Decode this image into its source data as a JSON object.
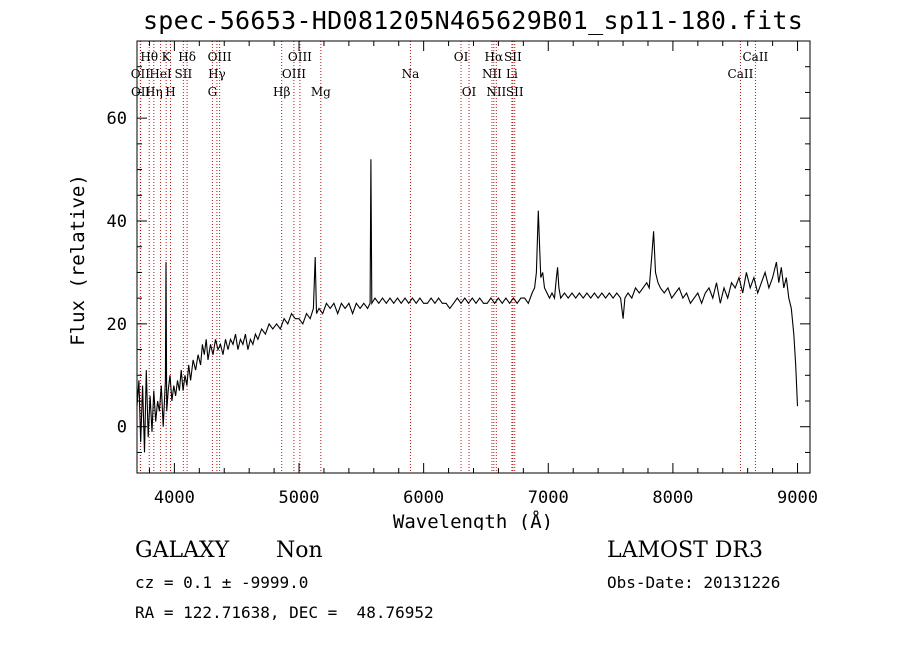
{
  "chart_data": {
    "type": "line",
    "title": "spec-56653-HD081205N465629B01_sp11-180.fits",
    "xlabel": "Wavelength (Å)",
    "ylabel": "Flux (relative)",
    "xlim": [
      3700,
      9100
    ],
    "ylim": [
      -9,
      75
    ],
    "xticks": [
      4000,
      5000,
      6000,
      7000,
      8000,
      9000
    ],
    "yticks": [
      0,
      20,
      40,
      60
    ],
    "line_color": "#000000",
    "marker_color": "#b01818",
    "series": [
      {
        "name": "spectrum",
        "points": [
          [
            3700,
            4
          ],
          [
            3715,
            9
          ],
          [
            3730,
            -3
          ],
          [
            3745,
            8
          ],
          [
            3760,
            -5
          ],
          [
            3775,
            11
          ],
          [
            3790,
            -2
          ],
          [
            3805,
            6
          ],
          [
            3820,
            -1
          ],
          [
            3835,
            7
          ],
          [
            3850,
            1
          ],
          [
            3865,
            5
          ],
          [
            3880,
            3
          ],
          [
            3895,
            8
          ],
          [
            3910,
            0
          ],
          [
            3922,
            6
          ],
          [
            3928,
            9
          ],
          [
            3933,
            32
          ],
          [
            3938,
            3
          ],
          [
            3950,
            7
          ],
          [
            3965,
            10
          ],
          [
            3980,
            5
          ],
          [
            3995,
            8
          ],
          [
            4010,
            6
          ],
          [
            4025,
            9
          ],
          [
            4040,
            7
          ],
          [
            4055,
            11
          ],
          [
            4070,
            7
          ],
          [
            4085,
            10
          ],
          [
            4100,
            8
          ],
          [
            4115,
            12
          ],
          [
            4130,
            9
          ],
          [
            4150,
            13
          ],
          [
            4170,
            11
          ],
          [
            4190,
            14
          ],
          [
            4210,
            12
          ],
          [
            4225,
            16
          ],
          [
            4240,
            14
          ],
          [
            4255,
            17
          ],
          [
            4270,
            13
          ],
          [
            4290,
            16
          ],
          [
            4310,
            14
          ],
          [
            4330,
            17
          ],
          [
            4350,
            15
          ],
          [
            4370,
            16
          ],
          [
            4390,
            14
          ],
          [
            4410,
            17
          ],
          [
            4430,
            15
          ],
          [
            4450,
            17
          ],
          [
            4470,
            16
          ],
          [
            4490,
            18
          ],
          [
            4510,
            15
          ],
          [
            4530,
            17
          ],
          [
            4550,
            16
          ],
          [
            4570,
            18
          ],
          [
            4590,
            15
          ],
          [
            4610,
            17
          ],
          [
            4630,
            16
          ],
          [
            4650,
            18
          ],
          [
            4670,
            17
          ],
          [
            4700,
            19
          ],
          [
            4730,
            18
          ],
          [
            4760,
            20
          ],
          [
            4790,
            19
          ],
          [
            4820,
            20
          ],
          [
            4850,
            19
          ],
          [
            4880,
            21
          ],
          [
            4910,
            20
          ],
          [
            4940,
            22
          ],
          [
            4970,
            21
          ],
          [
            5000,
            21
          ],
          [
            5030,
            20
          ],
          [
            5060,
            22
          ],
          [
            5090,
            21
          ],
          [
            5115,
            23
          ],
          [
            5130,
            33
          ],
          [
            5140,
            22
          ],
          [
            5160,
            23
          ],
          [
            5190,
            22
          ],
          [
            5220,
            24
          ],
          [
            5250,
            23
          ],
          [
            5280,
            24
          ],
          [
            5310,
            22
          ],
          [
            5340,
            24
          ],
          [
            5370,
            23
          ],
          [
            5400,
            24
          ],
          [
            5430,
            22
          ],
          [
            5460,
            24
          ],
          [
            5490,
            23
          ],
          [
            5520,
            24
          ],
          [
            5550,
            23
          ],
          [
            5570,
            24
          ],
          [
            5577,
            52
          ],
          [
            5584,
            24
          ],
          [
            5610,
            25
          ],
          [
            5640,
            24
          ],
          [
            5670,
            25
          ],
          [
            5700,
            24
          ],
          [
            5730,
            25
          ],
          [
            5760,
            24
          ],
          [
            5790,
            25
          ],
          [
            5820,
            24
          ],
          [
            5850,
            25
          ],
          [
            5880,
            24
          ],
          [
            5910,
            25
          ],
          [
            5940,
            24
          ],
          [
            5970,
            25
          ],
          [
            6000,
            24
          ],
          [
            6030,
            24
          ],
          [
            6060,
            25
          ],
          [
            6090,
            24
          ],
          [
            6120,
            25
          ],
          [
            6150,
            24
          ],
          [
            6180,
            24
          ],
          [
            6210,
            23
          ],
          [
            6240,
            24
          ],
          [
            6270,
            25
          ],
          [
            6300,
            24
          ],
          [
            6330,
            25
          ],
          [
            6360,
            24
          ],
          [
            6390,
            25
          ],
          [
            6420,
            24
          ],
          [
            6450,
            25
          ],
          [
            6480,
            24
          ],
          [
            6510,
            24
          ],
          [
            6540,
            25
          ],
          [
            6570,
            24
          ],
          [
            6600,
            25
          ],
          [
            6630,
            24
          ],
          [
            6660,
            25
          ],
          [
            6690,
            24
          ],
          [
            6720,
            25
          ],
          [
            6750,
            24
          ],
          [
            6780,
            25
          ],
          [
            6810,
            25
          ],
          [
            6840,
            24
          ],
          [
            6870,
            26
          ],
          [
            6890,
            27
          ],
          [
            6905,
            30
          ],
          [
            6920,
            42
          ],
          [
            6930,
            35
          ],
          [
            6940,
            29
          ],
          [
            6955,
            30
          ],
          [
            6970,
            27
          ],
          [
            6990,
            26
          ],
          [
            7010,
            25
          ],
          [
            7030,
            26
          ],
          [
            7050,
            25
          ],
          [
            7065,
            29
          ],
          [
            7075,
            31
          ],
          [
            7085,
            27
          ],
          [
            7100,
            25
          ],
          [
            7130,
            26
          ],
          [
            7160,
            25
          ],
          [
            7190,
            26
          ],
          [
            7220,
            25
          ],
          [
            7250,
            26
          ],
          [
            7280,
            25
          ],
          [
            7310,
            26
          ],
          [
            7340,
            25
          ],
          [
            7370,
            26
          ],
          [
            7400,
            25
          ],
          [
            7430,
            26
          ],
          [
            7460,
            25
          ],
          [
            7490,
            26
          ],
          [
            7520,
            25
          ],
          [
            7550,
            26
          ],
          [
            7580,
            25
          ],
          [
            7600,
            21
          ],
          [
            7615,
            25
          ],
          [
            7640,
            26
          ],
          [
            7670,
            25
          ],
          [
            7700,
            27
          ],
          [
            7730,
            26
          ],
          [
            7760,
            27
          ],
          [
            7790,
            28
          ],
          [
            7810,
            27
          ],
          [
            7830,
            33
          ],
          [
            7845,
            38
          ],
          [
            7860,
            30
          ],
          [
            7880,
            28
          ],
          [
            7900,
            27
          ],
          [
            7930,
            26
          ],
          [
            7960,
            27
          ],
          [
            7990,
            25
          ],
          [
            8020,
            26
          ],
          [
            8050,
            27
          ],
          [
            8080,
            25
          ],
          [
            8110,
            26
          ],
          [
            8140,
            24
          ],
          [
            8170,
            25
          ],
          [
            8200,
            26
          ],
          [
            8230,
            24
          ],
          [
            8260,
            26
          ],
          [
            8290,
            27
          ],
          [
            8320,
            25
          ],
          [
            8350,
            28
          ],
          [
            8380,
            24
          ],
          [
            8410,
            27
          ],
          [
            8440,
            25
          ],
          [
            8470,
            28
          ],
          [
            8500,
            27
          ],
          [
            8530,
            29
          ],
          [
            8560,
            26
          ],
          [
            8590,
            30
          ],
          [
            8620,
            27
          ],
          [
            8650,
            29
          ],
          [
            8680,
            26
          ],
          [
            8710,
            28
          ],
          [
            8740,
            30
          ],
          [
            8770,
            27
          ],
          [
            8800,
            29
          ],
          [
            8830,
            32
          ],
          [
            8850,
            28
          ],
          [
            8870,
            31
          ],
          [
            8890,
            27
          ],
          [
            8910,
            29
          ],
          [
            8930,
            25
          ],
          [
            8950,
            23
          ],
          [
            8970,
            18
          ],
          [
            8985,
            12
          ],
          [
            9000,
            4
          ]
        ]
      }
    ],
    "line_markers": [
      {
        "label": "OII",
        "x": 3727,
        "row": 1
      },
      {
        "label": "OII",
        "x": 3729,
        "row": 2
      },
      {
        "label": "Hθ",
        "x": 3798,
        "row": 0
      },
      {
        "label": "HeI",
        "x": 3889,
        "row": 1
      },
      {
        "label": "Hη",
        "x": 3835,
        "row": 2
      },
      {
        "label": "K",
        "x": 3934,
        "row": 0
      },
      {
        "label": "H",
        "x": 3969,
        "row": 2
      },
      {
        "label": "Hδ",
        "x": 4102,
        "row": 0
      },
      {
        "label": "SII",
        "x": 4072,
        "row": 1
      },
      {
        "label": "OIII",
        "x": 4363,
        "row": 0
      },
      {
        "label": "Hγ",
        "x": 4341,
        "row": 1
      },
      {
        "label": "G",
        "x": 4305,
        "row": 2
      },
      {
        "label": "OIII",
        "x": 5007,
        "row": 0
      },
      {
        "label": "OIII",
        "x": 4959,
        "row": 1
      },
      {
        "label": "Hβ",
        "x": 4861,
        "row": 2
      },
      {
        "label": "Mg",
        "x": 5175,
        "row": 2
      },
      {
        "label": "Na",
        "x": 5894,
        "row": 1
      },
      {
        "label": "OI",
        "x": 6300,
        "row": 0
      },
      {
        "label": "OI",
        "x": 6364,
        "row": 2
      },
      {
        "label": "Hα",
        "x": 6563,
        "row": 0
      },
      {
        "label": "SII",
        "x": 6716,
        "row": 0
      },
      {
        "label": "NII",
        "x": 6548,
        "row": 1
      },
      {
        "label": "Li",
        "x": 6708,
        "row": 1
      },
      {
        "label": "NII",
        "x": 6583,
        "row": 2
      },
      {
        "label": "SII",
        "x": 6731,
        "row": 2
      },
      {
        "label": "CaII",
        "x": 8662,
        "row": 0
      },
      {
        "label": "CaII",
        "x": 8542,
        "row": 1
      }
    ]
  },
  "info": {
    "obj_class": "GALAXY",
    "obj_subclass": "Non",
    "cz": "cz = 0.1 ± -9999.0",
    "radec": "RA = 122.71638, DEC =  48.76952",
    "survey": "LAMOST DR3",
    "obs_date": "Obs-Date: 20131226"
  }
}
